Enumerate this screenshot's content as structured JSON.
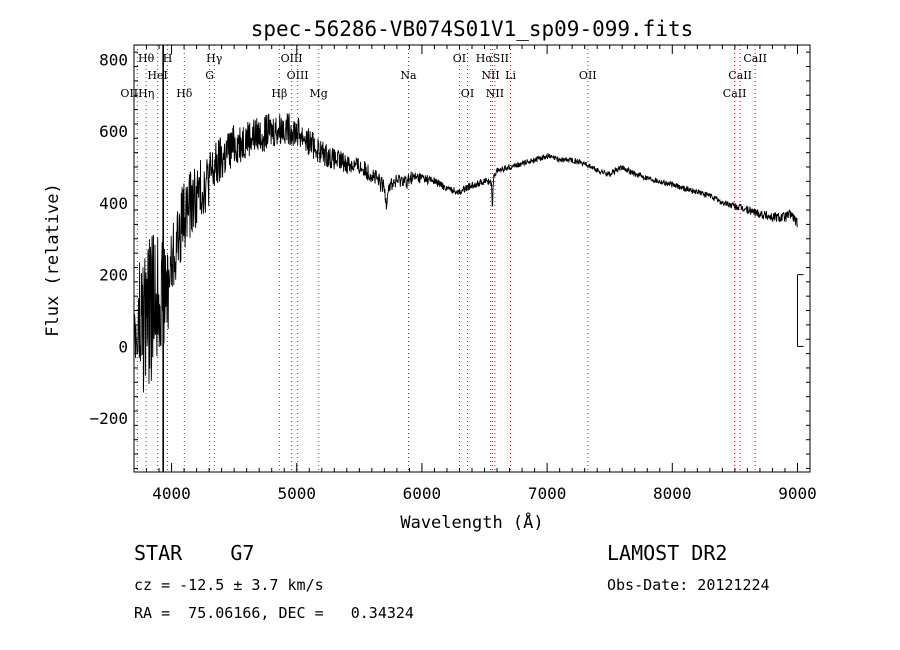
{
  "chart_data": {
    "type": "line",
    "title": "spec-56286-VB074S01V1_sp09-099.fits",
    "xlabel": "Wavelength (Å)",
    "ylabel": "Flux (relative)",
    "xlim": [
      3700,
      9100
    ],
    "ylim": [
      -350,
      840
    ],
    "xticks": [
      4000,
      5000,
      6000,
      7000,
      8000,
      9000
    ],
    "yticks": [
      -200,
      0,
      200,
      400,
      600,
      800
    ],
    "grid": false,
    "spectrum_envelope": {
      "x": [
        3700,
        3750,
        3800,
        3850,
        3900,
        3950,
        4000,
        4050,
        4100,
        4200,
        4300,
        4400,
        4500,
        4600,
        4700,
        4800,
        4900,
        5000,
        5100,
        5200,
        5300,
        5400,
        5500,
        5600,
        5700,
        5800,
        5900,
        6000,
        6100,
        6200,
        6300,
        6400,
        6500,
        6550,
        6600,
        6700,
        6800,
        6900,
        7000,
        7100,
        7200,
        7300,
        7400,
        7500,
        7600,
        7700,
        7800,
        7900,
        8000,
        8100,
        8200,
        8300,
        8400,
        8500,
        8600,
        8700,
        8800,
        8900,
        8950,
        9000
      ],
      "center": [
        0,
        40,
        80,
        120,
        160,
        140,
        230,
        300,
        370,
        420,
        470,
        520,
        560,
        580,
        590,
        600,
        610,
        600,
        570,
        540,
        520,
        510,
        500,
        480,
        440,
        460,
        470,
        470,
        460,
        440,
        430,
        450,
        460,
        460,
        490,
        500,
        510,
        520,
        530,
        520,
        520,
        510,
        490,
        480,
        500,
        480,
        470,
        460,
        450,
        440,
        430,
        420,
        400,
        390,
        380,
        370,
        360,
        360,
        370,
        340
      ],
      "noise": [
        200,
        230,
        230,
        200,
        180,
        150,
        120,
        100,
        100,
        90,
        80,
        70,
        60,
        55,
        50,
        50,
        45,
        45,
        40,
        35,
        30,
        30,
        25,
        25,
        25,
        20,
        20,
        15,
        12,
        10,
        10,
        10,
        10,
        10,
        8,
        8,
        8,
        8,
        8,
        8,
        8,
        8,
        8,
        8,
        8,
        8,
        8,
        8,
        8,
        8,
        8,
        8,
        8,
        10,
        12,
        12,
        15,
        15,
        15,
        15
      ]
    },
    "absorption_features": [
      {
        "x": 6563,
        "depth": 70,
        "width": 6
      },
      {
        "x": 5715,
        "depth": 40,
        "width": 10
      },
      {
        "x": 5880,
        "depth": 25,
        "width": 8
      }
    ],
    "lines": [
      {
        "label": "Hθ",
        "x": 3797,
        "row": 0,
        "color": "#555555"
      },
      {
        "label": "H",
        "x": 3968,
        "row": 0,
        "color": "#555555"
      },
      {
        "label": "Hγ",
        "x": 4341,
        "row": 0,
        "color": "#555555"
      },
      {
        "label": "OIII",
        "x": 4959,
        "row": 0,
        "color": "#555555"
      },
      {
        "label": "OI",
        "x": 6300,
        "row": 0,
        "color": "#555555"
      },
      {
        "label": "HαSII",
        "x": 6563,
        "row": 0,
        "color": "#cc0000"
      },
      {
        "label": "CaII",
        "x": 8662,
        "row": 0,
        "color": "#cc0000"
      },
      {
        "label": "HeI",
        "x": 3889,
        "row": 1,
        "color": "#555555"
      },
      {
        "label": "G",
        "x": 4304,
        "row": 1,
        "color": "#555555"
      },
      {
        "label": "OIII",
        "x": 5007,
        "row": 1,
        "color": "#555555"
      },
      {
        "label": "Na",
        "x": 5893,
        "row": 1,
        "color": "#555555"
      },
      {
        "label": "NII",
        "x": 6548,
        "row": 1,
        "color": "#555555"
      },
      {
        "label": "Li",
        "x": 6708,
        "row": 1,
        "color": "#cc0000"
      },
      {
        "label": "OII",
        "x": 7325,
        "row": 1,
        "color": "#555555"
      },
      {
        "label": "CaII",
        "x": 8542,
        "row": 1,
        "color": "#cc0000"
      },
      {
        "label": "OIIHη",
        "x": 3727,
        "row": 2,
        "color": "#555555"
      },
      {
        "label": "Hδ",
        "x": 4102,
        "row": 2,
        "color": "#555555"
      },
      {
        "label": "Hβ",
        "x": 4861,
        "row": 2,
        "color": "#555555"
      },
      {
        "label": "Mg",
        "x": 5175,
        "row": 2,
        "color": "#555555"
      },
      {
        "label": "OI",
        "x": 6364,
        "row": 2,
        "color": "#555555"
      },
      {
        "label": "NII",
        "x": 6583,
        "row": 2,
        "color": "#555555"
      },
      {
        "label": "CaII",
        "x": 8498,
        "row": 2,
        "color": "#cc0000"
      }
    ],
    "marker_line": {
      "x": 3933
    }
  },
  "info": {
    "object_class": "STAR    G7",
    "cz": "cz = -12.5 ± 3.7 km/s",
    "radec": "RA =  75.06166, DEC =   0.34324",
    "survey": "LAMOST DR2",
    "obs_date": "Obs-Date: 20121224"
  }
}
